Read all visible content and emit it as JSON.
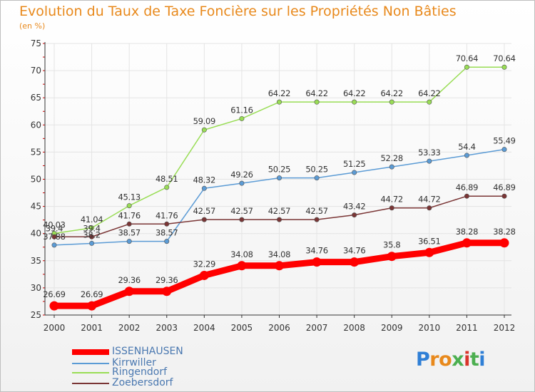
{
  "title": "Evolution du Taux de Taxe Foncière sur les Propriétés Non Bâties",
  "unit_label": "(en %)",
  "logo_text": "Proxiti",
  "colors": {
    "title": "#e8891c",
    "grid": "#e4e4e4",
    "axis": "#333333",
    "legend_text": "#4a78b0"
  },
  "chart_data": {
    "type": "line",
    "title": "Evolution du Taux de Taxe Foncière sur les Propriétés Non Bâties",
    "ylabel": "(en %)",
    "xlabel": "",
    "ylim": [
      25,
      75
    ],
    "yticks": [
      25,
      30,
      35,
      40,
      45,
      50,
      55,
      60,
      65,
      70,
      75
    ],
    "grid": true,
    "legend_position": "bottom-left",
    "x": [
      "2000",
      "2001",
      "2002",
      "2003",
      "2004",
      "2005",
      "2006",
      "2007",
      "2008",
      "2009",
      "2010",
      "2011",
      "2012"
    ],
    "series": [
      {
        "name": "ISSENHAUSEN",
        "color": "#ff0000",
        "highlight": true,
        "values": [
          26.69,
          26.69,
          29.36,
          29.36,
          32.29,
          34.08,
          34.08,
          34.76,
          34.76,
          35.8,
          36.51,
          38.28,
          38.28
        ],
        "labels": [
          "26.69",
          "26.69",
          "29.36",
          "29.36",
          "32.29",
          "34.08",
          "34.08",
          "34.76",
          "34.76",
          "35.8",
          "36.51",
          "38.28",
          "38.28"
        ]
      },
      {
        "name": "Kirrwiller",
        "color": "#5b9bd5",
        "values": [
          37.88,
          38.2,
          38.57,
          38.57,
          48.32,
          49.26,
          50.25,
          50.25,
          51.25,
          52.28,
          53.33,
          54.4,
          55.49
        ],
        "labels": [
          "37.88",
          "38.2",
          "38.57",
          "38.57",
          "48.32",
          "49.26",
          "50.25",
          "50.25",
          "51.25",
          "52.28",
          "53.33",
          "54.4",
          "55.49"
        ]
      },
      {
        "name": "Ringendorf",
        "color": "#99dd55",
        "values": [
          40.03,
          41.04,
          45.13,
          48.51,
          59.09,
          61.16,
          64.22,
          64.22,
          64.22,
          64.22,
          64.22,
          70.64,
          70.64
        ],
        "labels": [
          "40.03",
          "41.04",
          "45.13",
          "48.51",
          "59.09",
          "61.16",
          "64.22",
          "64.22",
          "64.22",
          "64.22",
          "64.22",
          "70.64",
          "70.64"
        ]
      },
      {
        "name": "Zoebersdorf",
        "color": "#7a3535",
        "values": [
          39.4,
          39.4,
          41.76,
          41.76,
          42.57,
          42.57,
          42.57,
          42.57,
          43.42,
          44.72,
          44.72,
          46.89,
          46.89
        ],
        "labels": [
          "39.4",
          "39.4",
          "41.76",
          "41.76",
          "42.57",
          "42.57",
          "42.57",
          "42.57",
          "43.42",
          "44.72",
          "44.72",
          "46.89",
          "46.89"
        ]
      }
    ]
  }
}
